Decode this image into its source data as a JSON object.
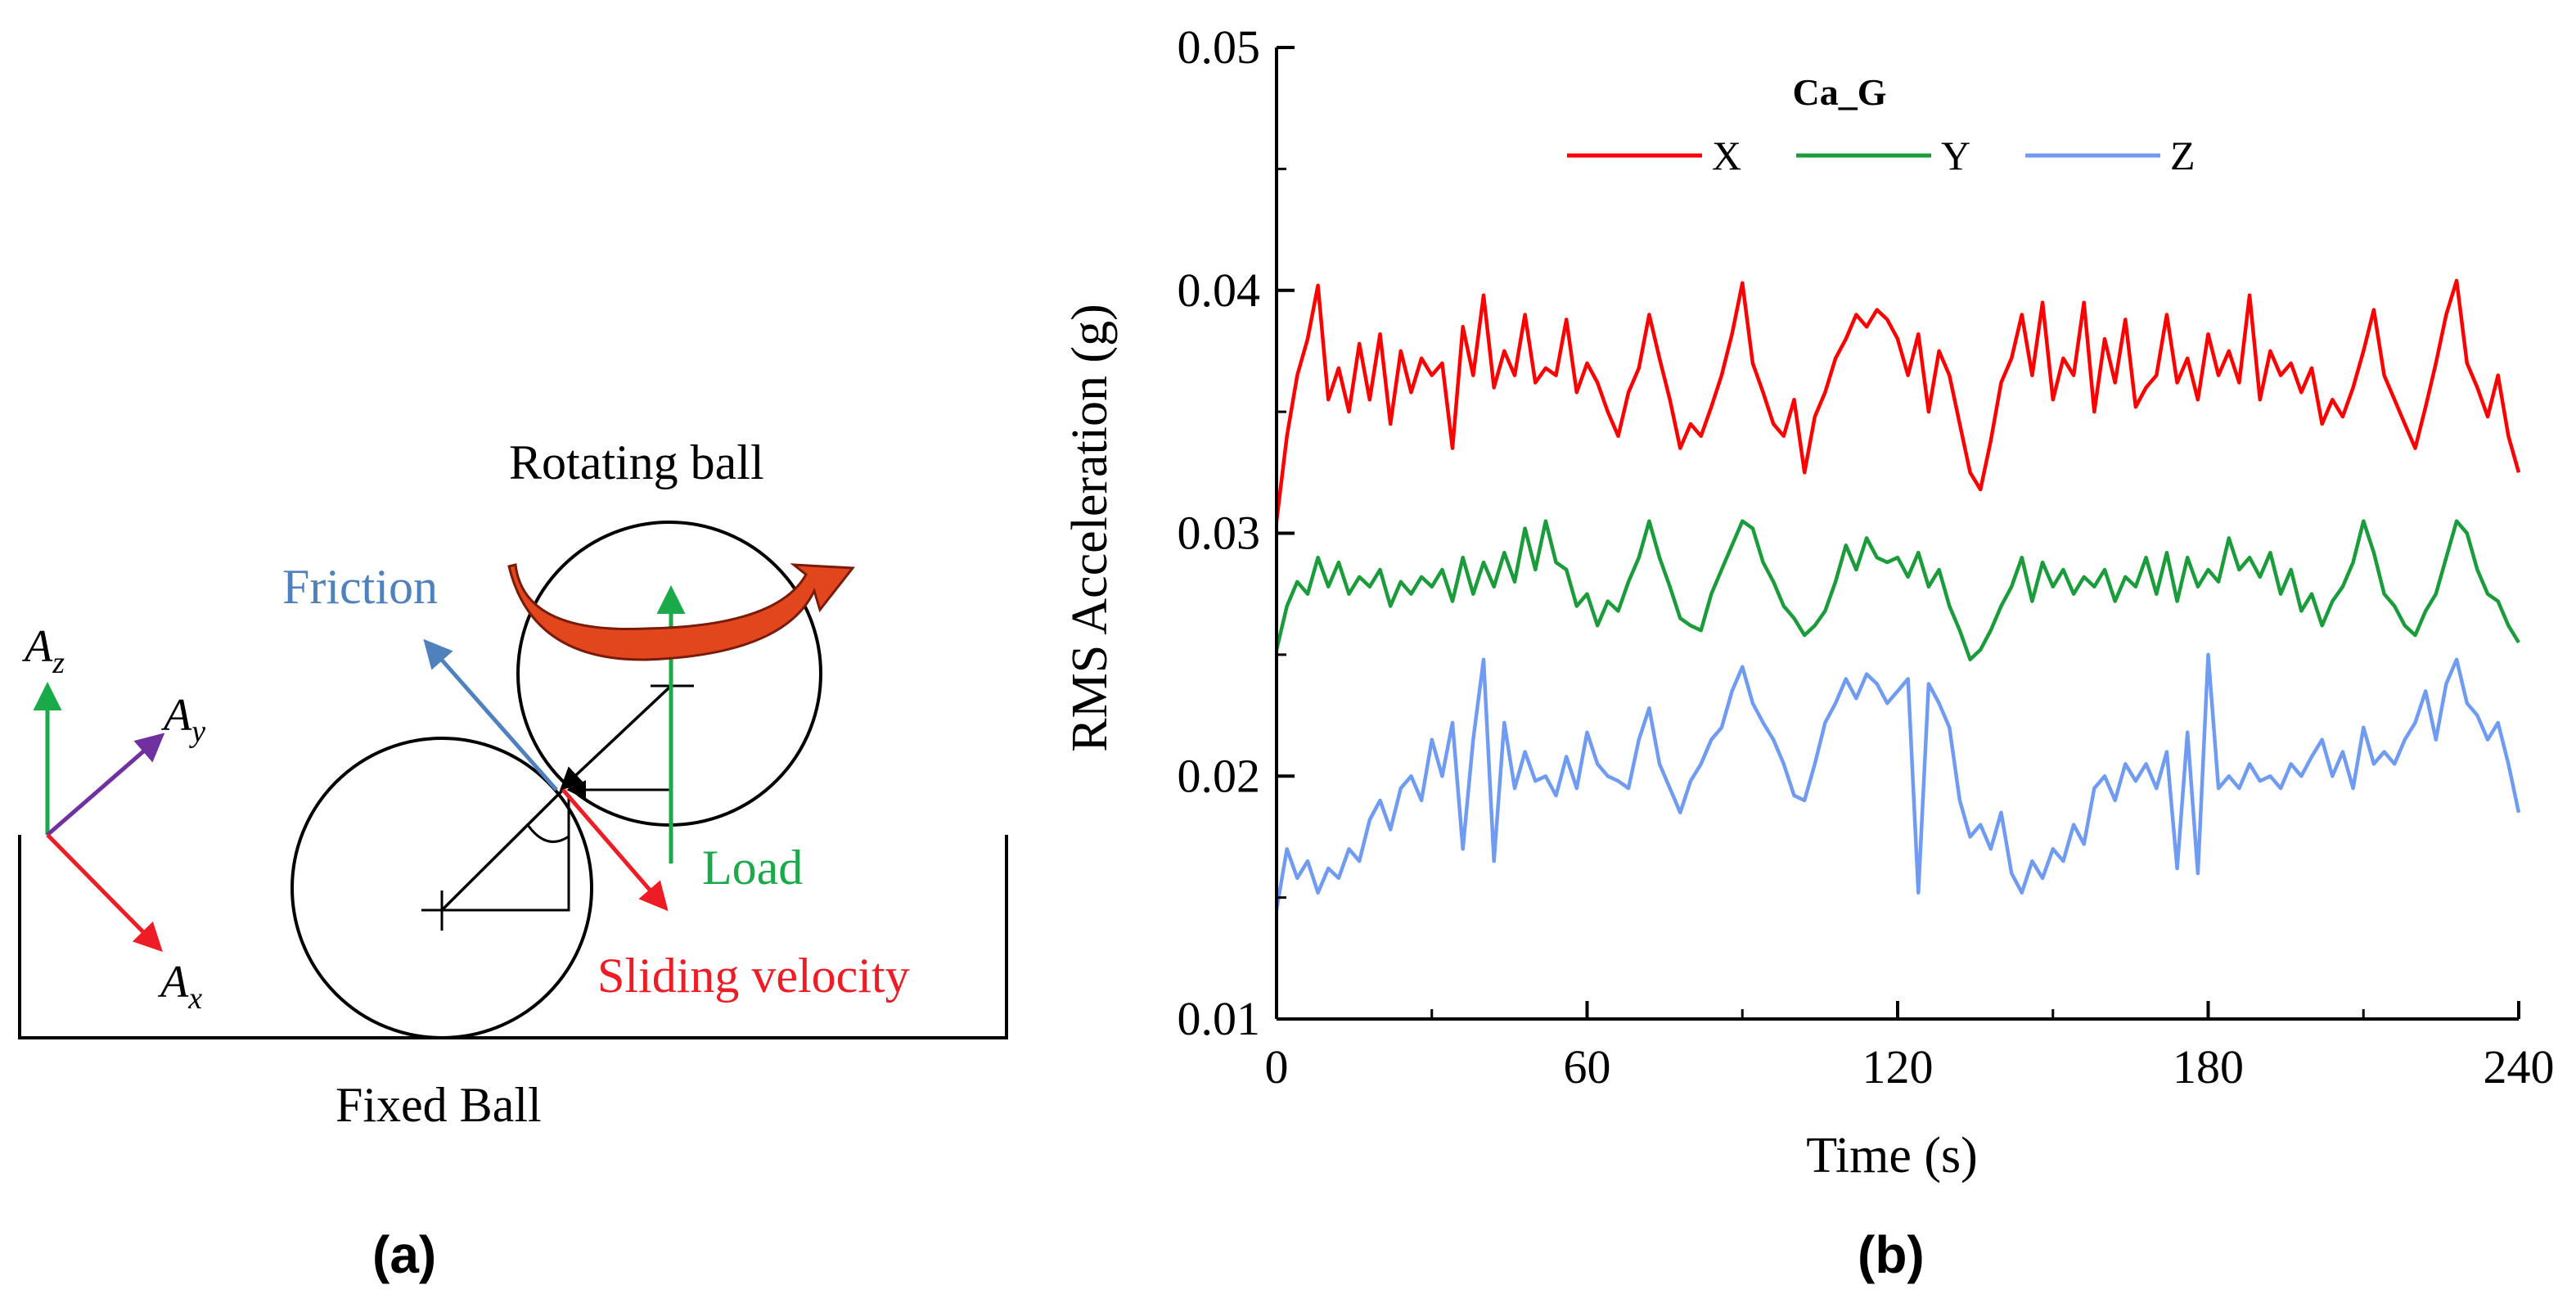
{
  "panel_a": {
    "label": "(a)",
    "rotating_ball_label": "Rotating ball",
    "fixed_ball_label": "Fixed Ball",
    "friction_label": "Friction",
    "load_label": "Load",
    "sliding_velocity_label": "Sliding velocity",
    "axes": {
      "z_main": "A",
      "z_sub": "z",
      "y_main": "A",
      "y_sub": "y",
      "x_main": "A",
      "x_sub": "x"
    },
    "colors": {
      "friction": "#4f81bd",
      "load": "#1aaa4a",
      "sliding": "#ee1c24",
      "ay": "#7030a0",
      "rotation_arrow": "#e2461d"
    }
  },
  "panel_b": {
    "label": "(b)"
  },
  "chart_data": {
    "type": "line",
    "title": "",
    "legend_title": "Ca_G",
    "legend_position": "top-center",
    "xlabel": "Time (s)",
    "ylabel": "RMS Acceleration (g)",
    "xlim": [
      0,
      240
    ],
    "ylim": [
      0.01,
      0.05
    ],
    "xticks": [
      0,
      60,
      120,
      180,
      240
    ],
    "xtick_labels": [
      "0",
      "60",
      "120",
      "180",
      "240"
    ],
    "yticks": [
      0.01,
      0.02,
      0.03,
      0.04,
      0.05
    ],
    "ytick_labels": [
      "0.01",
      "0.02",
      "0.03",
      "0.04",
      "0.05"
    ],
    "grid": false,
    "series": [
      {
        "name": "X",
        "color": "#ff0000",
        "x": [
          0,
          2,
          4,
          6,
          8,
          10,
          12,
          14,
          16,
          18,
          20,
          22,
          24,
          26,
          28,
          30,
          32,
          34,
          36,
          38,
          40,
          42,
          44,
          46,
          48,
          50,
          52,
          54,
          56,
          58,
          60,
          62,
          64,
          66,
          68,
          70,
          72,
          74,
          76,
          78,
          80,
          82,
          84,
          86,
          88,
          90,
          92,
          94,
          96,
          98,
          100,
          102,
          104,
          106,
          108,
          110,
          112,
          114,
          116,
          118,
          120,
          122,
          124,
          126,
          128,
          130,
          132,
          134,
          136,
          138,
          140,
          142,
          144,
          146,
          148,
          150,
          152,
          154,
          156,
          158,
          160,
          162,
          164,
          166,
          168,
          170,
          172,
          174,
          176,
          178,
          180,
          182,
          184,
          186,
          188,
          190,
          192,
          194,
          196,
          198,
          200,
          202,
          204,
          206,
          208,
          210,
          212,
          214,
          216,
          218,
          220,
          222,
          224,
          226,
          228,
          230,
          232,
          234,
          236,
          238,
          240
        ],
        "values": [
          0.0305,
          0.034,
          0.0365,
          0.038,
          0.0402,
          0.0355,
          0.0368,
          0.035,
          0.0378,
          0.0355,
          0.0382,
          0.0345,
          0.0375,
          0.0358,
          0.0372,
          0.0365,
          0.037,
          0.0335,
          0.0385,
          0.0365,
          0.0398,
          0.036,
          0.0375,
          0.0365,
          0.039,
          0.0362,
          0.0368,
          0.0365,
          0.0388,
          0.0358,
          0.037,
          0.0362,
          0.035,
          0.034,
          0.0358,
          0.0368,
          0.039,
          0.0372,
          0.0355,
          0.0335,
          0.0345,
          0.034,
          0.0352,
          0.0365,
          0.0382,
          0.0403,
          0.037,
          0.0358,
          0.0345,
          0.034,
          0.0355,
          0.0325,
          0.0348,
          0.0358,
          0.0372,
          0.038,
          0.039,
          0.0385,
          0.0392,
          0.0388,
          0.038,
          0.0365,
          0.0382,
          0.035,
          0.0375,
          0.0365,
          0.0345,
          0.0325,
          0.0318,
          0.0338,
          0.0362,
          0.0372,
          0.039,
          0.0365,
          0.0395,
          0.0355,
          0.0372,
          0.0365,
          0.0395,
          0.035,
          0.038,
          0.0362,
          0.0388,
          0.0352,
          0.036,
          0.0365,
          0.039,
          0.0362,
          0.0372,
          0.0355,
          0.0382,
          0.0365,
          0.0375,
          0.0362,
          0.0398,
          0.0355,
          0.0375,
          0.0365,
          0.037,
          0.0358,
          0.0368,
          0.0345,
          0.0355,
          0.0348,
          0.036,
          0.0375,
          0.0392,
          0.0365,
          0.0355,
          0.0345,
          0.0335,
          0.0352,
          0.037,
          0.039,
          0.0404,
          0.037,
          0.036,
          0.0348,
          0.0365,
          0.034,
          0.0325
        ]
      },
      {
        "name": "Y",
        "color": "#1a9c3a",
        "x": [
          0,
          2,
          4,
          6,
          8,
          10,
          12,
          14,
          16,
          18,
          20,
          22,
          24,
          26,
          28,
          30,
          32,
          34,
          36,
          38,
          40,
          42,
          44,
          46,
          48,
          50,
          52,
          54,
          56,
          58,
          60,
          62,
          64,
          66,
          68,
          70,
          72,
          74,
          76,
          78,
          80,
          82,
          84,
          86,
          88,
          90,
          92,
          94,
          96,
          98,
          100,
          102,
          104,
          106,
          108,
          110,
          112,
          114,
          116,
          118,
          120,
          122,
          124,
          126,
          128,
          130,
          132,
          134,
          136,
          138,
          140,
          142,
          144,
          146,
          148,
          150,
          152,
          154,
          156,
          158,
          160,
          162,
          164,
          166,
          168,
          170,
          172,
          174,
          176,
          178,
          180,
          182,
          184,
          186,
          188,
          190,
          192,
          194,
          196,
          198,
          200,
          202,
          204,
          206,
          208,
          210,
          212,
          214,
          216,
          218,
          220,
          222,
          224,
          226,
          228,
          230,
          232,
          234,
          236,
          238,
          240
        ],
        "values": [
          0.0252,
          0.027,
          0.028,
          0.0275,
          0.029,
          0.0278,
          0.0288,
          0.0275,
          0.0282,
          0.0278,
          0.0285,
          0.027,
          0.028,
          0.0275,
          0.0282,
          0.0278,
          0.0285,
          0.0272,
          0.029,
          0.0275,
          0.0288,
          0.0278,
          0.0292,
          0.028,
          0.0302,
          0.0285,
          0.0305,
          0.0288,
          0.0285,
          0.027,
          0.0275,
          0.0262,
          0.0272,
          0.0268,
          0.028,
          0.029,
          0.0305,
          0.029,
          0.0278,
          0.0265,
          0.0262,
          0.026,
          0.0275,
          0.0285,
          0.0295,
          0.0305,
          0.0302,
          0.0288,
          0.028,
          0.027,
          0.0265,
          0.0258,
          0.0262,
          0.0268,
          0.028,
          0.0295,
          0.0285,
          0.0298,
          0.029,
          0.0288,
          0.029,
          0.0282,
          0.0292,
          0.0278,
          0.0285,
          0.027,
          0.026,
          0.0248,
          0.0252,
          0.026,
          0.027,
          0.0278,
          0.029,
          0.0272,
          0.0288,
          0.0278,
          0.0285,
          0.0275,
          0.0282,
          0.0278,
          0.0285,
          0.0272,
          0.0282,
          0.0278,
          0.029,
          0.0275,
          0.0292,
          0.0272,
          0.029,
          0.0278,
          0.0285,
          0.028,
          0.0298,
          0.0285,
          0.029,
          0.0282,
          0.0292,
          0.0275,
          0.0285,
          0.0268,
          0.0275,
          0.0262,
          0.0272,
          0.0278,
          0.0288,
          0.0305,
          0.0292,
          0.0275,
          0.027,
          0.0262,
          0.0258,
          0.0268,
          0.0275,
          0.029,
          0.0305,
          0.03,
          0.0285,
          0.0275,
          0.0272,
          0.0262,
          0.0255
        ]
      },
      {
        "name": "Z",
        "color": "#6f9bf2",
        "x": [
          0,
          2,
          4,
          6,
          8,
          10,
          12,
          14,
          16,
          18,
          20,
          22,
          24,
          26,
          28,
          30,
          32,
          34,
          36,
          38,
          40,
          42,
          44,
          46,
          48,
          50,
          52,
          54,
          56,
          58,
          60,
          62,
          64,
          66,
          68,
          70,
          72,
          74,
          76,
          78,
          80,
          82,
          84,
          86,
          88,
          90,
          92,
          94,
          96,
          98,
          100,
          102,
          104,
          106,
          108,
          110,
          112,
          114,
          116,
          118,
          120,
          122,
          124,
          126,
          128,
          130,
          132,
          134,
          136,
          138,
          140,
          142,
          144,
          146,
          148,
          150,
          152,
          154,
          156,
          158,
          160,
          162,
          164,
          166,
          168,
          170,
          172,
          174,
          176,
          178,
          180,
          182,
          184,
          186,
          188,
          190,
          192,
          194,
          196,
          198,
          200,
          202,
          204,
          206,
          208,
          210,
          212,
          214,
          216,
          218,
          220,
          222,
          224,
          226,
          228,
          230,
          232,
          234,
          236,
          238,
          240
        ],
        "values": [
          0.0145,
          0.017,
          0.0158,
          0.0165,
          0.0152,
          0.0162,
          0.0158,
          0.017,
          0.0165,
          0.0182,
          0.019,
          0.0178,
          0.0195,
          0.02,
          0.019,
          0.0215,
          0.02,
          0.0222,
          0.017,
          0.0215,
          0.0248,
          0.0165,
          0.0222,
          0.0195,
          0.021,
          0.0198,
          0.02,
          0.0192,
          0.0208,
          0.0195,
          0.0218,
          0.0205,
          0.02,
          0.0198,
          0.0195,
          0.0215,
          0.0228,
          0.0205,
          0.0195,
          0.0185,
          0.0198,
          0.0205,
          0.0215,
          0.022,
          0.0235,
          0.0245,
          0.023,
          0.0222,
          0.0215,
          0.0205,
          0.0192,
          0.019,
          0.0205,
          0.0222,
          0.023,
          0.024,
          0.0232,
          0.0242,
          0.0238,
          0.023,
          0.0235,
          0.024,
          0.0152,
          0.0238,
          0.023,
          0.022,
          0.019,
          0.0175,
          0.018,
          0.017,
          0.0185,
          0.016,
          0.0152,
          0.0165,
          0.0158,
          0.017,
          0.0165,
          0.018,
          0.0172,
          0.0195,
          0.02,
          0.019,
          0.0205,
          0.0198,
          0.0205,
          0.0195,
          0.021,
          0.0162,
          0.0218,
          0.016,
          0.025,
          0.0195,
          0.02,
          0.0195,
          0.0205,
          0.0198,
          0.02,
          0.0195,
          0.0205,
          0.02,
          0.0208,
          0.0215,
          0.02,
          0.021,
          0.0195,
          0.022,
          0.0205,
          0.021,
          0.0205,
          0.0215,
          0.0222,
          0.0235,
          0.0215,
          0.0238,
          0.0248,
          0.023,
          0.0225,
          0.0215,
          0.0222,
          0.0205,
          0.0185
        ]
      }
    ]
  }
}
